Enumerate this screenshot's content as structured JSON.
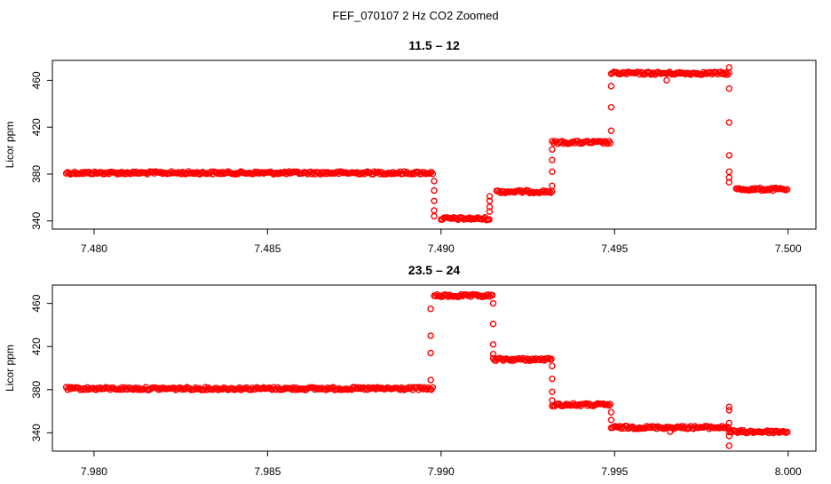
{
  "figure": {
    "title": "FEF_070107  2 Hz CO2 Zoomed"
  },
  "chart_data": [
    {
      "type": "scatter",
      "title": "11.5 – 12",
      "xlabel": "",
      "ylabel": "Licor ppm",
      "xlim": [
        7.4788,
        7.5008
      ],
      "ylim": [
        333,
        477
      ],
      "x_ticks": [
        "7.480",
        "7.485",
        "7.490",
        "7.495",
        "7.500"
      ],
      "y_ticks": [
        "340",
        "380",
        "420",
        "460"
      ],
      "color": "#ff0000",
      "grid": false,
      "segments": [
        {
          "x": [
            7.4792,
            7.4898
          ],
          "y": 381
        },
        {
          "x": [
            7.49,
            7.4914
          ],
          "y": 342
        },
        {
          "x": [
            7.4916,
            7.4932
          ],
          "y": 365
        },
        {
          "x": [
            7.4932,
            7.4949
          ],
          "y": 407
        },
        {
          "x": [
            7.4949,
            7.4983
          ],
          "y": 466
        },
        {
          "x": [
            7.4985,
            7.5
          ],
          "y": 367
        }
      ],
      "transitions": [
        {
          "x": 7.4898,
          "y": [
            344,
            349,
            357,
            366,
            374
          ]
        },
        {
          "x": 7.4914,
          "y": [
            348,
            352,
            357,
            361
          ]
        },
        {
          "x": 7.4932,
          "y": [
            370,
            382,
            392,
            401
          ]
        },
        {
          "x": 7.4949,
          "y": [
            417,
            437,
            455
          ]
        },
        {
          "x": 7.4983,
          "y": [
            453,
            424,
            396,
            382,
            377,
            373
          ]
        }
      ],
      "outliers": [
        {
          "x": 7.4965,
          "y": 460
        },
        {
          "x": 7.4983,
          "y": 471
        }
      ]
    },
    {
      "type": "scatter",
      "title": "23.5 – 24",
      "xlabel": "",
      "ylabel": "Licor ppm",
      "xlim": [
        7.9788,
        8.0008
      ],
      "ylim": [
        323,
        477
      ],
      "x_ticks": [
        "7.980",
        "7.985",
        "7.990",
        "7.995",
        "8.000"
      ],
      "y_ticks": [
        "340",
        "380",
        "420",
        "460"
      ],
      "color": "#ff0000",
      "grid": false,
      "segments": [
        {
          "x": [
            7.9792,
            7.9898
          ],
          "y": 381
        },
        {
          "x": [
            7.9898,
            7.9915
          ],
          "y": 467
        },
        {
          "x": [
            7.9915,
            7.9932
          ],
          "y": 408
        },
        {
          "x": [
            7.9932,
            7.9949
          ],
          "y": 366
        },
        {
          "x": [
            7.9949,
            7.9983
          ],
          "y": 345
        },
        {
          "x": [
            7.9983,
            8.0
          ],
          "y": 341
        }
      ],
      "transitions": [
        {
          "x": 7.9897,
          "y": [
            389,
            414,
            430,
            455
          ]
        },
        {
          "x": 7.9915,
          "y": [
            460,
            441,
            422,
            413
          ]
        },
        {
          "x": 7.9932,
          "y": [
            402,
            390,
            378,
            370
          ]
        },
        {
          "x": 7.9949,
          "y": [
            359,
            352
          ]
        },
        {
          "x": 7.9983,
          "y": [
            337,
            328,
            349,
            361,
            364
          ]
        }
      ],
      "outliers": [
        {
          "x": 7.9966,
          "y": 341
        }
      ]
    }
  ]
}
